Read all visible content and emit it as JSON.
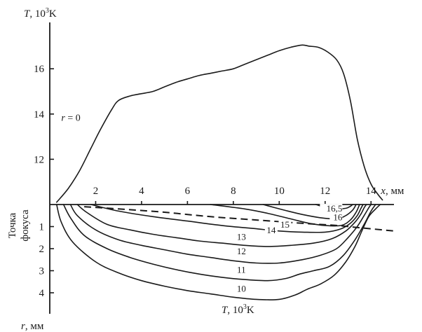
{
  "chart_data": [
    {
      "type": "line",
      "title": "",
      "ylabel": {
        "var": "T",
        "unit": ", 10",
        "sup": "3",
        "tail": "K"
      },
      "xlabel": {
        "var": "x",
        "unit": ", мм"
      },
      "xlim": [
        0,
        15
      ],
      "ylim": [
        10,
        17.5
      ],
      "xticks": [
        "2",
        "4",
        "6",
        "8",
        "10",
        "12",
        "14"
      ],
      "yticks": [
        "12",
        "14",
        "16"
      ],
      "series": [
        {
          "name": "r = 0",
          "label_var": "r",
          "label_rest": " = 0",
          "x": [
            0.3,
            0.8,
            1.3,
            1.8,
            2.2,
            2.7,
            3.0,
            3.5,
            4.0,
            4.5,
            5.0,
            5.5,
            6.0,
            6.5,
            7.0,
            7.5,
            8.0,
            8.5,
            9.0,
            9.5,
            10.0,
            10.5,
            11.0,
            11.3,
            11.7,
            12.1,
            12.5,
            12.8,
            13.1,
            13.4,
            13.7,
            14.0,
            14.3,
            14.5
          ],
          "y": [
            10.1,
            10.7,
            11.5,
            12.5,
            13.3,
            14.2,
            14.6,
            14.8,
            14.9,
            15.0,
            15.2,
            15.4,
            15.55,
            15.7,
            15.8,
            15.9,
            16.0,
            16.2,
            16.4,
            16.6,
            16.8,
            16.95,
            17.05,
            17.0,
            16.95,
            16.75,
            16.4,
            15.8,
            14.6,
            12.9,
            11.7,
            10.9,
            10.45,
            10.2
          ]
        }
      ]
    },
    {
      "type": "line",
      "subtype": "isotherms",
      "title": "",
      "xlabel": "",
      "ylabel": {
        "var": "r",
        "unit": ", мм"
      },
      "left_label": [
        "Точка",
        "фокуса"
      ],
      "bottom_label": {
        "var": "T",
        "unit": ", 10",
        "sup": "3",
        "tail": "K"
      },
      "xlim": [
        0,
        15
      ],
      "ylim": [
        0,
        5
      ],
      "yticks": [
        "1",
        "2",
        "3",
        "4"
      ],
      "series": [
        {
          "name": "10",
          "x": [
            0.3,
            0.5,
            1.0,
            2.0,
            3.0,
            4.0,
            5.0,
            6.0,
            7.0,
            8.0,
            9.0,
            10.0,
            10.7,
            11.2,
            11.8,
            12.4,
            12.9,
            13.3,
            13.6,
            13.9,
            14.2,
            14.4
          ],
          "y": [
            0,
            0.8,
            1.7,
            2.6,
            3.1,
            3.45,
            3.7,
            3.9,
            4.05,
            4.2,
            4.3,
            4.3,
            4.1,
            3.85,
            3.6,
            3.2,
            2.6,
            1.9,
            1.2,
            0.55,
            0.2,
            0
          ]
        },
        {
          "name": "11",
          "x": [
            0.6,
            0.9,
            1.5,
            2.5,
            3.5,
            4.5,
            5.5,
            6.5,
            7.5,
            8.5,
            9.5,
            10.3,
            10.9,
            11.5,
            12.2,
            12.8,
            13.3,
            13.7,
            14.0,
            14.2
          ],
          "y": [
            0,
            0.6,
            1.4,
            2.0,
            2.4,
            2.7,
            2.95,
            3.15,
            3.3,
            3.4,
            3.45,
            3.35,
            3.15,
            3.0,
            2.8,
            2.3,
            1.6,
            0.9,
            0.3,
            0
          ]
        },
        {
          "name": "12",
          "x": [
            0.9,
            1.2,
            2.0,
            3.0,
            4.0,
            5.0,
            6.0,
            7.0,
            8.0,
            9.0,
            10.0,
            11.0,
            11.8,
            12.5,
            13.0,
            13.4,
            13.7,
            13.9,
            14.0
          ],
          "y": [
            0,
            0.5,
            1.15,
            1.6,
            1.85,
            2.05,
            2.25,
            2.4,
            2.55,
            2.65,
            2.65,
            2.5,
            2.3,
            2.0,
            1.5,
            1.0,
            0.5,
            0.15,
            0
          ]
        },
        {
          "name": "13",
          "x": [
            1.2,
            1.6,
            2.5,
            3.5,
            4.5,
            5.5,
            6.5,
            7.5,
            8.5,
            9.5,
            10.5,
            11.5,
            12.3,
            12.9,
            13.3,
            13.55,
            13.7,
            13.8
          ],
          "y": [
            0,
            0.35,
            0.9,
            1.15,
            1.35,
            1.5,
            1.65,
            1.75,
            1.85,
            1.9,
            1.85,
            1.75,
            1.55,
            1.2,
            0.8,
            0.45,
            0.15,
            0
          ]
        },
        {
          "name": "14",
          "x": [
            1.8,
            3.0,
            4.5,
            6.0,
            7.5,
            9.0,
            10.0,
            11.0,
            12.0,
            12.7,
            13.1,
            13.4,
            13.55,
            13.65
          ],
          "y": [
            0,
            0.3,
            0.55,
            0.75,
            0.95,
            1.1,
            1.2,
            1.25,
            1.25,
            1.1,
            0.85,
            0.5,
            0.2,
            0
          ]
        },
        {
          "name": "15",
          "x": [
            7.0,
            8.5,
            9.5,
            10.5,
            11.3,
            12.0,
            12.7,
            13.1,
            13.35,
            13.5
          ],
          "y": [
            0,
            0.2,
            0.4,
            0.65,
            0.85,
            0.95,
            0.95,
            0.7,
            0.35,
            0
          ]
        },
        {
          "name": "16",
          "x": [
            9.3,
            10.2,
            11.0,
            11.8,
            12.5,
            12.9,
            13.2,
            13.35
          ],
          "y": [
            0,
            0.25,
            0.45,
            0.6,
            0.65,
            0.5,
            0.25,
            0
          ]
        },
        {
          "name": "16,5",
          "x": [
            11.6,
            12.0,
            12.5,
            12.9,
            13.1,
            13.2
          ],
          "y": [
            0,
            0.12,
            0.2,
            0.17,
            0.08,
            0
          ]
        }
      ],
      "dashed_line": {
        "x": [
          1.5,
          3.0,
          5.0,
          7.0,
          9.0,
          11.0,
          12.5,
          13.5,
          15.0
        ],
        "y": [
          0.1,
          0.2,
          0.35,
          0.55,
          0.7,
          0.85,
          0.95,
          1.05,
          1.2
        ]
      }
    }
  ]
}
